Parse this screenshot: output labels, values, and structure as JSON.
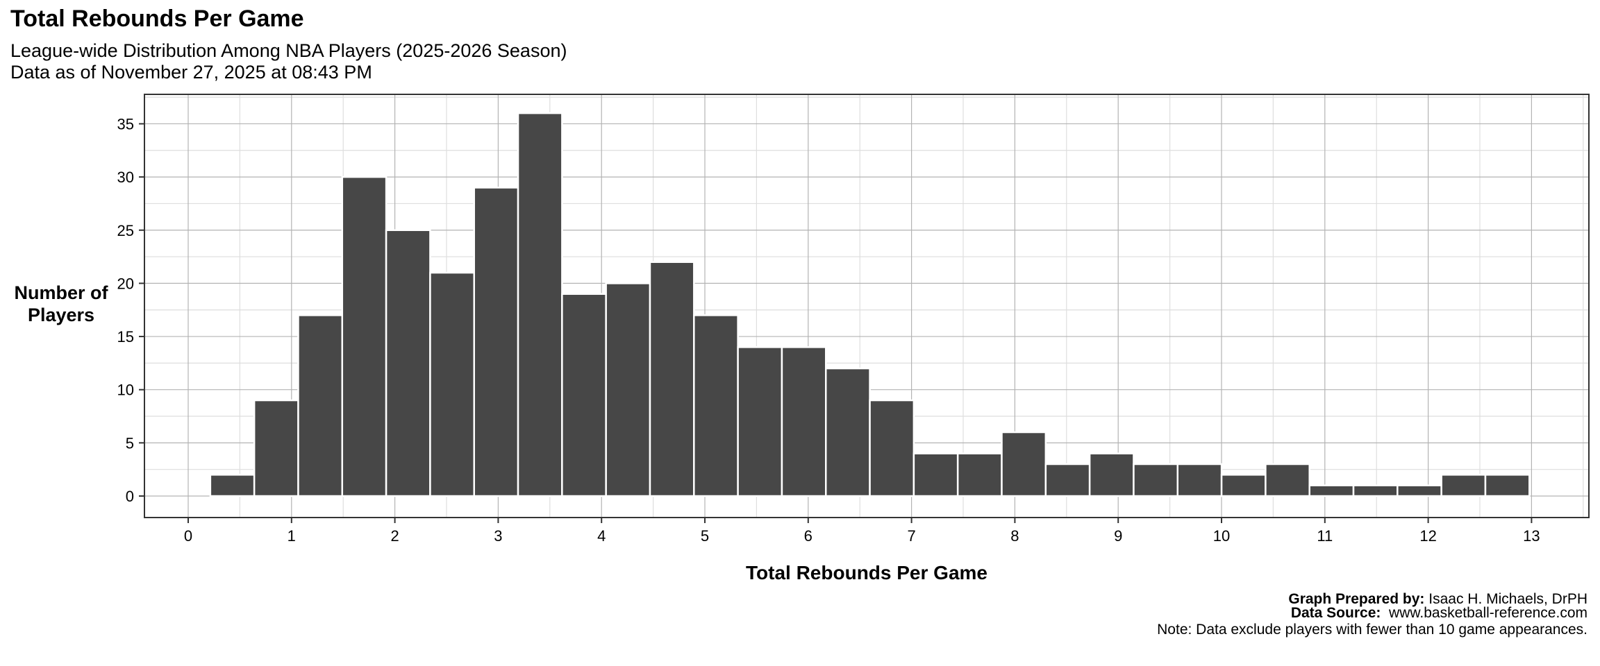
{
  "title": "Total Rebounds Per Game",
  "subtitle_line1": "League-wide Distribution Among NBA Players (2025-2026 Season)",
  "subtitle_line2": "Data as of November 27, 2025 at 08:43 PM",
  "caption": {
    "prepared_label": "Graph Prepared by:",
    "prepared_value": "Isaac H. Michaels, DrPH",
    "source_label": "Data Source:",
    "source_value": "www.basketball-reference.com"
  },
  "note": "Note: Data exclude players with fewer than 10 game appearances.",
  "colors": {
    "bar_fill": "#474747",
    "bar_outline": "#ffffff",
    "grid_major": "#b3b3b3",
    "grid_minor": "#dedede",
    "panel_border": "#333333"
  },
  "chart_data": {
    "type": "bar",
    "subtype": "histogram",
    "title": "Total Rebounds Per Game",
    "subtitle": "League-wide Distribution Among NBA Players (2025-2026 Season) — Data as of November 27, 2025 at 08:43 PM",
    "xlabel": "Total Rebounds Per Game",
    "ylabel": "Number of Players",
    "xlim": [
      -0.4,
      13.7
    ],
    "ylim": [
      -1.8,
      37.8
    ],
    "x_ticks": [
      0,
      1,
      2,
      3,
      4,
      5,
      6,
      7,
      8,
      9,
      10,
      11,
      12,
      13
    ],
    "y_ticks": [
      0,
      5,
      10,
      15,
      20,
      25,
      30,
      35
    ],
    "grid": true,
    "legend": null,
    "bin_start": 0.214,
    "bin_width": 0.4255,
    "bin_centers": [
      0.43,
      0.85,
      1.28,
      1.7,
      2.13,
      2.55,
      2.98,
      3.4,
      3.83,
      4.26,
      4.68,
      5.11,
      5.53,
      5.96,
      6.38,
      6.81,
      7.23,
      7.66,
      8.09,
      8.51,
      8.94,
      9.36,
      9.79,
      10.21,
      10.64,
      11.06,
      11.49,
      11.92,
      12.34,
      12.77
    ],
    "values": [
      2,
      9,
      17,
      30,
      25,
      21,
      29,
      36,
      19,
      20,
      22,
      17,
      14,
      14,
      12,
      9,
      4,
      4,
      6,
      3,
      4,
      3,
      3,
      2,
      3,
      1,
      1,
      1,
      2,
      2
    ]
  }
}
